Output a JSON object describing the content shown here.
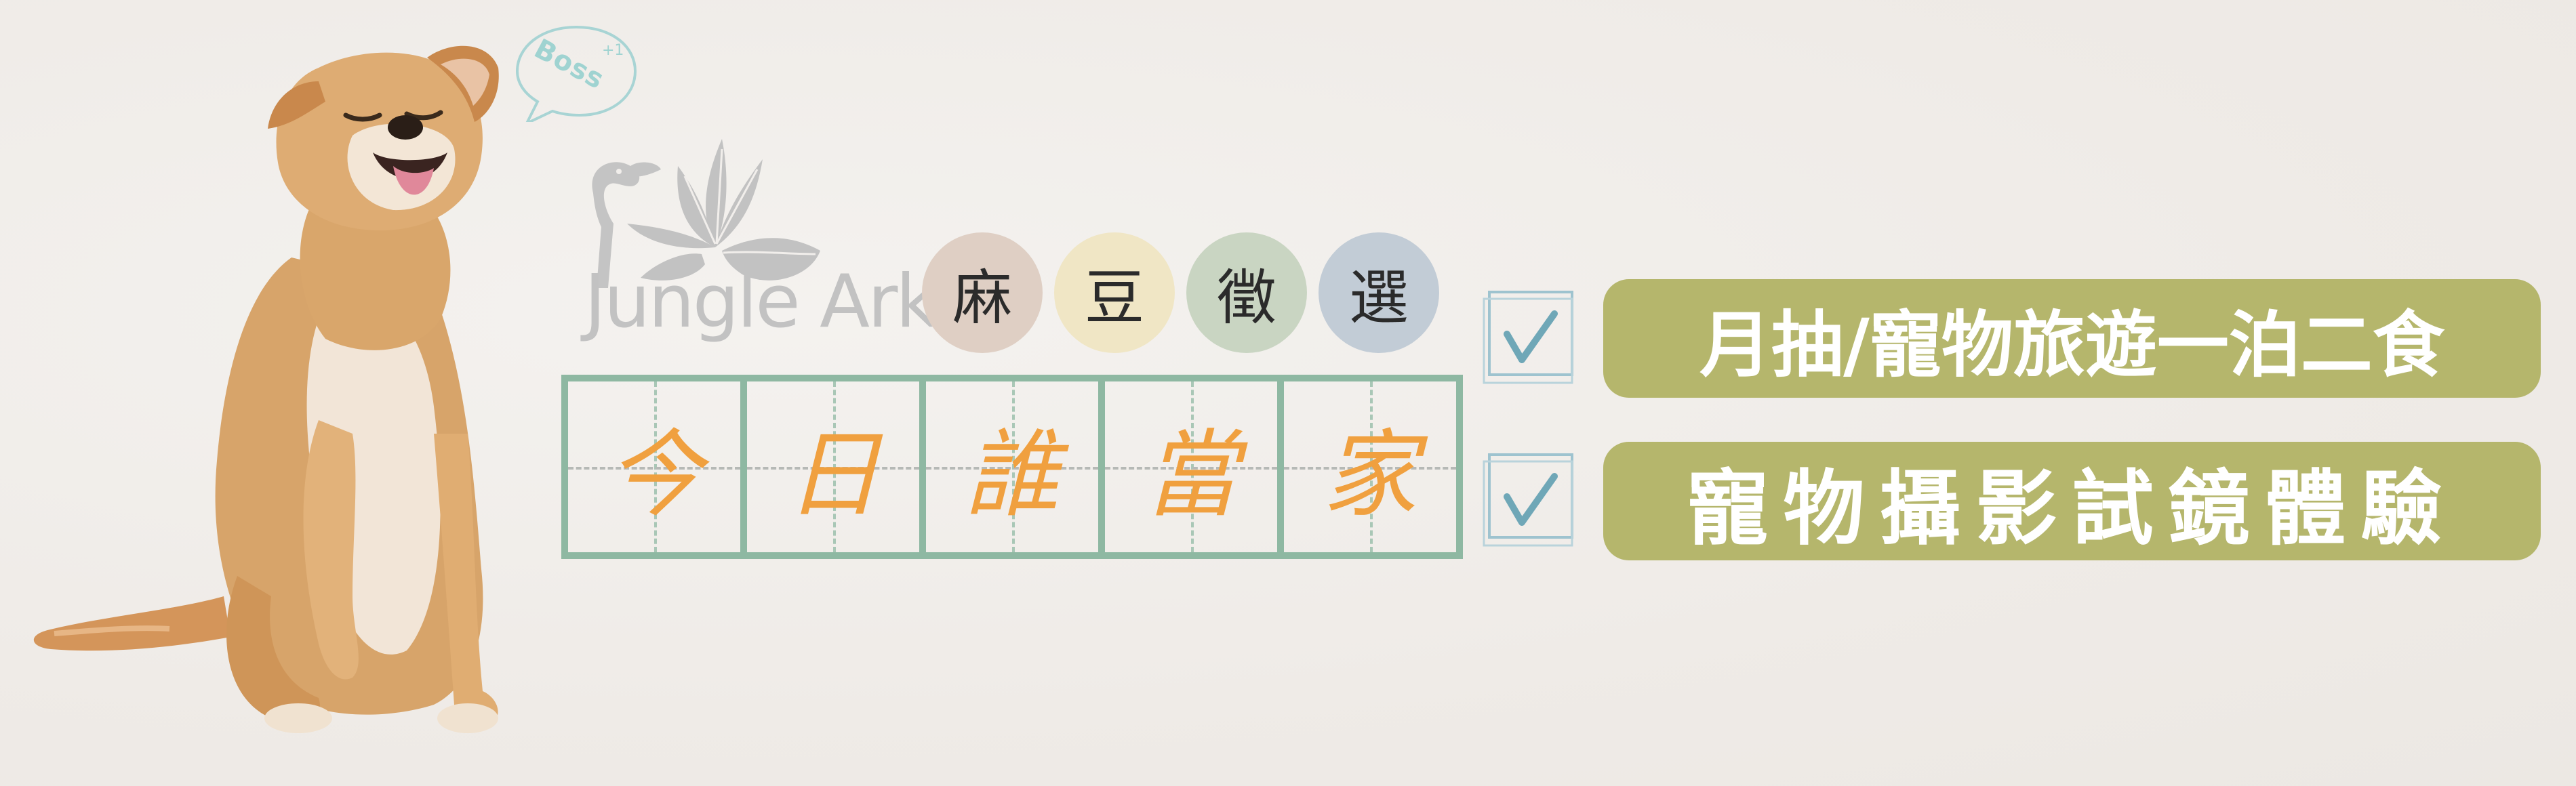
{
  "bubble": {
    "text": "Boss",
    "plus": "+1"
  },
  "logo": {
    "text": "Jungle Ark"
  },
  "circles": [
    "麻",
    "豆",
    "徵",
    "選"
  ],
  "grid": [
    "今",
    "日",
    "誰",
    "當",
    "家"
  ],
  "items": [
    {
      "label": "月抽/寵物旅遊一泊二食",
      "checked": true
    },
    {
      "label": "寵物攝影試鏡體驗",
      "checked": true
    }
  ],
  "colors": {
    "background": "#f1eeeb",
    "pill": "#b5b66c",
    "grid_border": "#8eb8a2",
    "grid_text": "#f0a03f",
    "check": "#7bb3bf",
    "bubble": "#9fd3d1"
  },
  "icons": [
    "dog-photo",
    "speech-bubble-icon",
    "flamingo-palm-logo",
    "checkbox-check-icon"
  ]
}
